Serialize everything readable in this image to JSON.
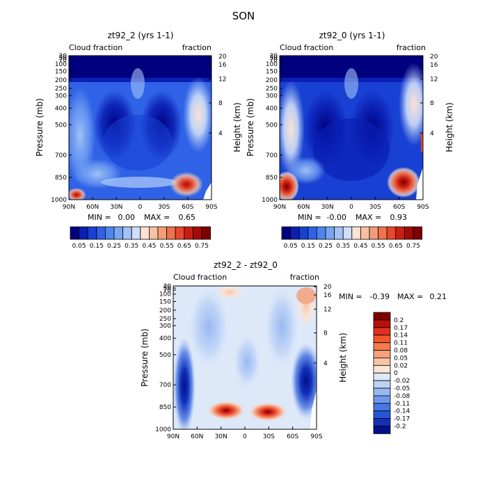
{
  "figure_title": "SON",
  "chart_data": [
    {
      "type": "heatmap",
      "title": "zt92_2 (yrs 1-1)",
      "left_label": "Cloud fraction",
      "right_label": "fraction",
      "ylabel": "Pressure (mb)",
      "ylabel_right": "Height (km)",
      "x_ticks": [
        "90N",
        "60N",
        "30N",
        "0",
        "30S",
        "60S",
        "90S"
      ],
      "y_ticks": [
        "1000",
        "850",
        "700",
        "500",
        "400",
        "300",
        "250",
        "200",
        "150",
        "100",
        "70",
        "50",
        "30"
      ],
      "y_ticks_right": [
        "4",
        "8",
        "12",
        "16",
        "20"
      ],
      "min_label": "MIN =",
      "min_value": "0.00",
      "max_label": "MAX =",
      "max_value": "0.65",
      "colorbar_labels": [
        "0.05",
        "0.15",
        "0.25",
        "0.35",
        "0.45",
        "0.55",
        "0.65",
        "0.75"
      ],
      "colorbar_colors": [
        "#00007f",
        "#0a1fb4",
        "#1840d2",
        "#2f62e6",
        "#4f86ee",
        "#78a6f4",
        "#a2c2f7",
        "#cfdef9",
        "#fbe2d2",
        "#f7c0a0",
        "#f49c78",
        "#f0714e",
        "#e8472c",
        "#c81e12",
        "#a50a08",
        "#7f0000"
      ]
    },
    {
      "type": "heatmap",
      "title": "zt92_0 (yrs 1-1)",
      "left_label": "Cloud fraction",
      "right_label": "fraction",
      "ylabel": "Pressure (mb)",
      "ylabel_right": "Height (km)",
      "x_ticks": [
        "90N",
        "60N",
        "30N",
        "0",
        "30S",
        "60S",
        "90S"
      ],
      "y_ticks": [
        "1000",
        "850",
        "700",
        "500",
        "400",
        "300",
        "250",
        "200",
        "150",
        "100",
        "70",
        "50",
        "30"
      ],
      "y_ticks_right": [
        "4",
        "8",
        "12",
        "16",
        "20"
      ],
      "min_label": "MIN =",
      "min_value": "-0.00",
      "max_label": "MAX =",
      "max_value": "0.93",
      "colorbar_labels": [
        "0.05",
        "0.15",
        "0.25",
        "0.35",
        "0.45",
        "0.55",
        "0.65",
        "0.75"
      ],
      "colorbar_colors": [
        "#00007f",
        "#0a1fb4",
        "#1840d2",
        "#2f62e6",
        "#4f86ee",
        "#78a6f4",
        "#a2c2f7",
        "#cfdef9",
        "#fbe2d2",
        "#f7c0a0",
        "#f49c78",
        "#f0714e",
        "#e8472c",
        "#c81e12",
        "#a50a08",
        "#7f0000"
      ]
    },
    {
      "type": "heatmap",
      "title": "zt92_2 - zt92_0",
      "left_label": "Cloud fraction",
      "right_label": "fraction",
      "ylabel": "Pressure (mb)",
      "ylabel_right": "Height (km)",
      "x_ticks": [
        "90N",
        "60N",
        "30N",
        "0",
        "30S",
        "60S",
        "90S"
      ],
      "y_ticks": [
        "1000",
        "850",
        "700",
        "500",
        "400",
        "300",
        "250",
        "200",
        "150",
        "100",
        "70",
        "50",
        "30"
      ],
      "y_ticks_right": [
        "4",
        "8",
        "12",
        "16",
        "20"
      ],
      "min_label": "MIN =",
      "min_value": "-0.39",
      "max_label": "MAX =",
      "max_value": "0.21",
      "colorbar_labels": [
        "0.2",
        "0.17",
        "0.14",
        "0.11",
        "0.08",
        "0.05",
        "0.02",
        "0",
        "-0.02",
        "-0.05",
        "-0.08",
        "-0.11",
        "-0.14",
        "-0.17",
        "-0.2"
      ],
      "colorbar_colors": [
        "#7f0000",
        "#b80f0a",
        "#e0301e",
        "#f0572f",
        "#f47a4e",
        "#f7a07a",
        "#f9c3a6",
        "#fbe6d6",
        "#dde8f9",
        "#bcd2f6",
        "#98b8f2",
        "#6f98ec",
        "#4877e4",
        "#2755d6",
        "#1232b8",
        "#020f8c"
      ]
    }
  ]
}
